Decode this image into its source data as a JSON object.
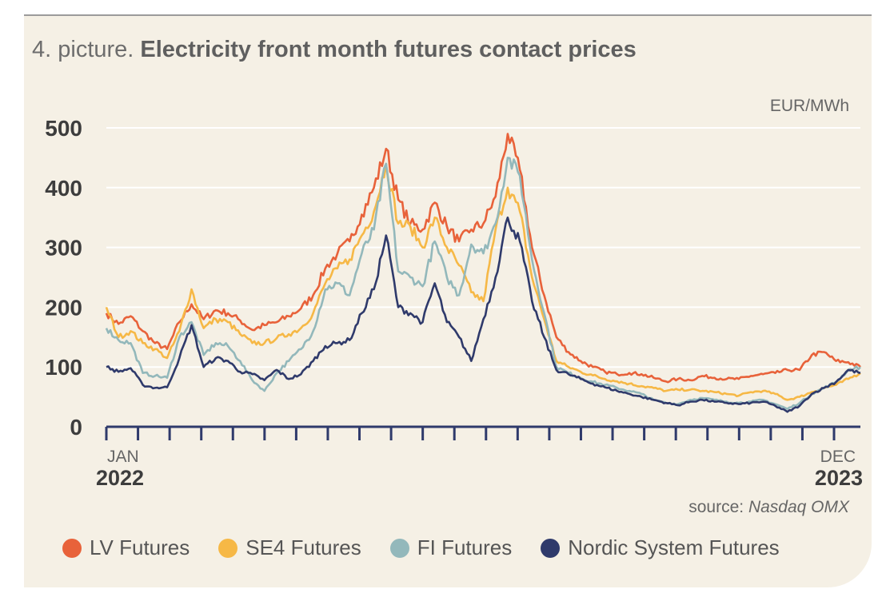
{
  "title": {
    "prefix": "4. picture.",
    "main": "Electricity front month futures contact prices"
  },
  "unit_label": "EUR/MWh",
  "source": {
    "prefix": "source:",
    "name": "Nasdaq OMX"
  },
  "colors": {
    "LV": "#e8623a",
    "SE4": "#f6b846",
    "FI": "#93b8bb",
    "Nordic": "#2f3a6b",
    "grid": "#ffffff",
    "axis": "#2f3a6b"
  },
  "chart_data": {
    "type": "line",
    "title": "Electricity front month futures contact prices",
    "xlabel": "",
    "ylabel": "EUR/MWh",
    "ylim": [
      0,
      500
    ],
    "y_ticks": [
      0,
      100,
      200,
      300,
      400,
      500
    ],
    "x_range": [
      "2022-01",
      "2023-12"
    ],
    "x_tick_labels": [
      {
        "month": "JAN",
        "year": "2022"
      },
      {
        "month": "DEC",
        "year": "2023"
      }
    ],
    "legend_position": "bottom",
    "series": [
      {
        "name": "LV Futures",
        "color": "#e8623a",
        "points": [
          [
            0,
            190
          ],
          [
            1,
            172
          ],
          [
            2,
            185
          ],
          [
            3,
            160
          ],
          [
            4,
            140
          ],
          [
            5,
            130
          ],
          [
            6,
            175
          ],
          [
            7,
            205
          ],
          [
            8,
            180
          ],
          [
            9,
            195
          ],
          [
            10,
            190
          ],
          [
            11,
            178
          ],
          [
            12,
            162
          ],
          [
            13,
            170
          ],
          [
            14,
            175
          ],
          [
            15,
            185
          ],
          [
            16,
            198
          ],
          [
            17,
            220
          ],
          [
            18,
            265
          ],
          [
            19,
            290
          ],
          [
            20,
            310
          ],
          [
            21,
            355
          ],
          [
            22,
            400
          ],
          [
            23,
            465
          ],
          [
            24,
            380
          ],
          [
            25,
            340
          ],
          [
            26,
            330
          ],
          [
            27,
            375
          ],
          [
            28,
            335
          ],
          [
            29,
            310
          ],
          [
            30,
            330
          ],
          [
            31,
            340
          ],
          [
            32,
            385
          ],
          [
            33,
            490
          ],
          [
            34,
            430
          ],
          [
            35,
            300
          ],
          [
            36,
            220
          ],
          [
            37,
            150
          ],
          [
            38,
            125
          ],
          [
            39,
            110
          ],
          [
            40,
            100
          ],
          [
            41,
            92
          ],
          [
            42,
            88
          ],
          [
            43,
            90
          ],
          [
            44,
            88
          ],
          [
            45,
            82
          ],
          [
            46,
            76
          ],
          [
            47,
            80
          ],
          [
            48,
            78
          ],
          [
            49,
            85
          ],
          [
            50,
            82
          ],
          [
            51,
            80
          ],
          [
            52,
            80
          ],
          [
            53,
            85
          ],
          [
            54,
            88
          ],
          [
            55,
            90
          ],
          [
            56,
            95
          ],
          [
            57,
            95
          ],
          [
            58,
            120
          ],
          [
            59,
            125
          ],
          [
            60,
            110
          ],
          [
            61,
            108
          ],
          [
            62,
            100
          ]
        ]
      },
      {
        "name": "SE4 Futures",
        "color": "#f6b846",
        "points": [
          [
            0,
            200
          ],
          [
            1,
            150
          ],
          [
            2,
            160
          ],
          [
            3,
            140
          ],
          [
            4,
            130
          ],
          [
            5,
            115
          ],
          [
            6,
            160
          ],
          [
            7,
            230
          ],
          [
            8,
            165
          ],
          [
            9,
            180
          ],
          [
            10,
            175
          ],
          [
            11,
            155
          ],
          [
            12,
            140
          ],
          [
            13,
            140
          ],
          [
            14,
            148
          ],
          [
            15,
            155
          ],
          [
            16,
            165
          ],
          [
            17,
            190
          ],
          [
            18,
            240
          ],
          [
            19,
            265
          ],
          [
            20,
            280
          ],
          [
            21,
            320
          ],
          [
            22,
            360
          ],
          [
            23,
            440
          ],
          [
            24,
            340
          ],
          [
            25,
            335
          ],
          [
            26,
            300
          ],
          [
            27,
            350
          ],
          [
            28,
            300
          ],
          [
            29,
            270
          ],
          [
            30,
            225
          ],
          [
            31,
            210
          ],
          [
            32,
            330
          ],
          [
            33,
            400
          ],
          [
            34,
            360
          ],
          [
            35,
            250
          ],
          [
            36,
            180
          ],
          [
            37,
            110
          ],
          [
            38,
            100
          ],
          [
            39,
            92
          ],
          [
            40,
            86
          ],
          [
            41,
            80
          ],
          [
            42,
            76
          ],
          [
            43,
            72
          ],
          [
            44,
            68
          ],
          [
            45,
            65
          ],
          [
            46,
            60
          ],
          [
            47,
            62
          ],
          [
            48,
            62
          ],
          [
            49,
            60
          ],
          [
            50,
            58
          ],
          [
            51,
            55
          ],
          [
            52,
            52
          ],
          [
            53,
            58
          ],
          [
            54,
            60
          ],
          [
            55,
            55
          ],
          [
            56,
            45
          ],
          [
            57,
            50
          ],
          [
            58,
            58
          ],
          [
            59,
            65
          ],
          [
            60,
            70
          ],
          [
            61,
            80
          ],
          [
            62,
            90
          ]
        ]
      },
      {
        "name": "FI Futures",
        "color": "#93b8bb",
        "points": [
          [
            0,
            165
          ],
          [
            1,
            145
          ],
          [
            2,
            140
          ],
          [
            3,
            90
          ],
          [
            4,
            85
          ],
          [
            5,
            82
          ],
          [
            6,
            150
          ],
          [
            7,
            175
          ],
          [
            8,
            120
          ],
          [
            9,
            140
          ],
          [
            10,
            135
          ],
          [
            11,
            110
          ],
          [
            12,
            78
          ],
          [
            13,
            60
          ],
          [
            14,
            90
          ],
          [
            15,
            110
          ],
          [
            16,
            130
          ],
          [
            17,
            160
          ],
          [
            18,
            230
          ],
          [
            19,
            240
          ],
          [
            20,
            220
          ],
          [
            21,
            290
          ],
          [
            22,
            330
          ],
          [
            23,
            440
          ],
          [
            24,
            260
          ],
          [
            25,
            250
          ],
          [
            26,
            235
          ],
          [
            27,
            310
          ],
          [
            28,
            250
          ],
          [
            29,
            220
          ],
          [
            30,
            305
          ],
          [
            31,
            290
          ],
          [
            32,
            340
          ],
          [
            33,
            450
          ],
          [
            34,
            420
          ],
          [
            35,
            280
          ],
          [
            36,
            190
          ],
          [
            37,
            100
          ],
          [
            38,
            90
          ],
          [
            39,
            82
          ],
          [
            40,
            75
          ],
          [
            41,
            70
          ],
          [
            42,
            65
          ],
          [
            43,
            60
          ],
          [
            44,
            55
          ],
          [
            45,
            45
          ],
          [
            46,
            40
          ],
          [
            47,
            38
          ],
          [
            48,
            45
          ],
          [
            49,
            48
          ],
          [
            50,
            45
          ],
          [
            51,
            42
          ],
          [
            52,
            40
          ],
          [
            53,
            42
          ],
          [
            54,
            45
          ],
          [
            55,
            38
          ],
          [
            56,
            30
          ],
          [
            57,
            40
          ],
          [
            58,
            55
          ],
          [
            59,
            65
          ],
          [
            60,
            75
          ],
          [
            61,
            95
          ],
          [
            62,
            100
          ]
        ]
      },
      {
        "name": "Nordic System Futures",
        "color": "#2f3a6b",
        "points": [
          [
            0,
            100
          ],
          [
            1,
            92
          ],
          [
            2,
            98
          ],
          [
            3,
            70
          ],
          [
            4,
            65
          ],
          [
            5,
            66
          ],
          [
            6,
            115
          ],
          [
            7,
            170
          ],
          [
            8,
            100
          ],
          [
            9,
            115
          ],
          [
            10,
            110
          ],
          [
            11,
            92
          ],
          [
            12,
            88
          ],
          [
            13,
            78
          ],
          [
            14,
            95
          ],
          [
            15,
            80
          ],
          [
            16,
            88
          ],
          [
            17,
            110
          ],
          [
            18,
            135
          ],
          [
            19,
            140
          ],
          [
            20,
            145
          ],
          [
            21,
            190
          ],
          [
            22,
            230
          ],
          [
            23,
            320
          ],
          [
            24,
            200
          ],
          [
            25,
            190
          ],
          [
            26,
            175
          ],
          [
            27,
            240
          ],
          [
            28,
            175
          ],
          [
            29,
            150
          ],
          [
            30,
            110
          ],
          [
            31,
            180
          ],
          [
            32,
            250
          ],
          [
            33,
            350
          ],
          [
            34,
            310
          ],
          [
            35,
            210
          ],
          [
            36,
            150
          ],
          [
            37,
            95
          ],
          [
            38,
            88
          ],
          [
            39,
            80
          ],
          [
            40,
            72
          ],
          [
            41,
            66
          ],
          [
            42,
            60
          ],
          [
            43,
            55
          ],
          [
            44,
            50
          ],
          [
            45,
            45
          ],
          [
            46,
            40
          ],
          [
            47,
            36
          ],
          [
            48,
            42
          ],
          [
            49,
            45
          ],
          [
            50,
            42
          ],
          [
            51,
            40
          ],
          [
            52,
            38
          ],
          [
            53,
            40
          ],
          [
            54,
            42
          ],
          [
            55,
            35
          ],
          [
            56,
            25
          ],
          [
            57,
            35
          ],
          [
            58,
            55
          ],
          [
            59,
            65
          ],
          [
            60,
            75
          ],
          [
            61,
            95
          ],
          [
            62,
            90
          ]
        ]
      }
    ]
  },
  "legend": [
    {
      "label": "LV Futures",
      "color": "#e8623a"
    },
    {
      "label": "SE4 Futures",
      "color": "#f6b846"
    },
    {
      "label": "FI Futures",
      "color": "#93b8bb"
    },
    {
      "label": "Nordic System Futures",
      "color": "#2f3a6b"
    }
  ]
}
